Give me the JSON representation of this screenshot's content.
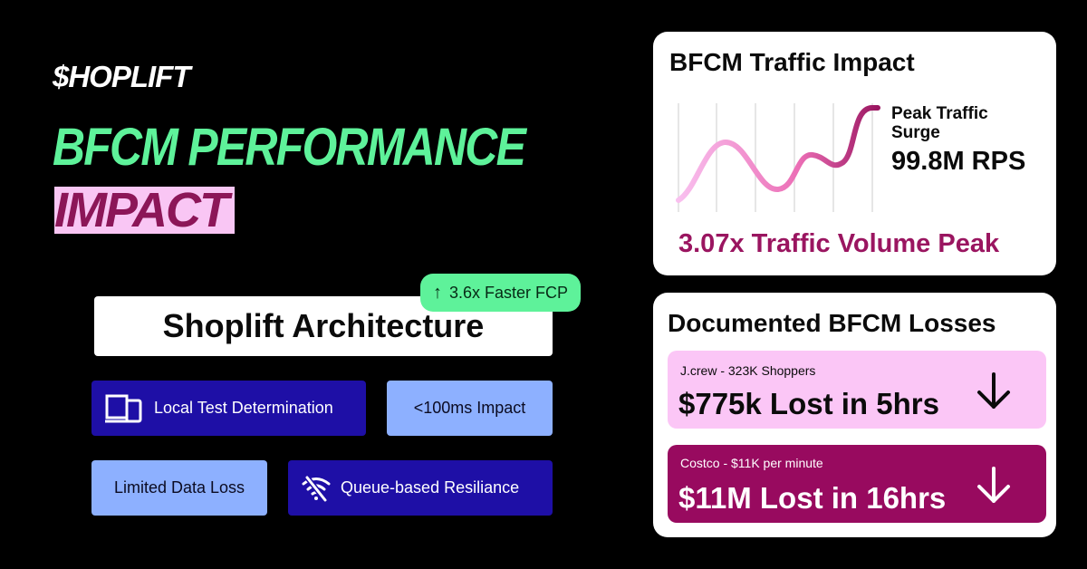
{
  "brand": {
    "logo_text": "$HOPLIFT"
  },
  "headline": {
    "line1": "BFCM PERFORMANCE",
    "line2": "IMPACT"
  },
  "architecture": {
    "title": "Shoplift Architecture",
    "badge": {
      "arrow": "↑",
      "text": "3.6x Faster FCP"
    },
    "features": [
      {
        "label": "Local Test Determination",
        "icon": "devices-icon"
      },
      {
        "label": "<100ms Impact"
      },
      {
        "label": "Limited Data Loss"
      },
      {
        "label": "Queue-based Resiliance",
        "icon": "wifi-off-icon"
      }
    ]
  },
  "traffic_card": {
    "title": "BFCM Traffic Impact",
    "peak_label_line1": "Peak Traffic",
    "peak_label_line2": "Surge",
    "peak_value": "99.8M RPS",
    "volume_text": "3.07x Traffic Volume Peak",
    "gradient": {
      "start": "#f9c0ef",
      "end": "#9a1560"
    }
  },
  "losses_card": {
    "title": "Documented BFCM Losses",
    "items": [
      {
        "subtitle": "J.crew - 323K Shoppers",
        "headline": "$775k Lost in 5hrs",
        "icon": "arrow-down-icon"
      },
      {
        "subtitle": "Costco - $11K per minute",
        "headline": "$11M Lost in 16hrs",
        "icon": "arrow-down-icon"
      }
    ]
  },
  "colors": {
    "green": "#5ef29a",
    "pink": "#f9c6f4",
    "maroon": "#980a5f",
    "indigo": "#1e0fa6",
    "periwinkle": "#8db0ff"
  }
}
